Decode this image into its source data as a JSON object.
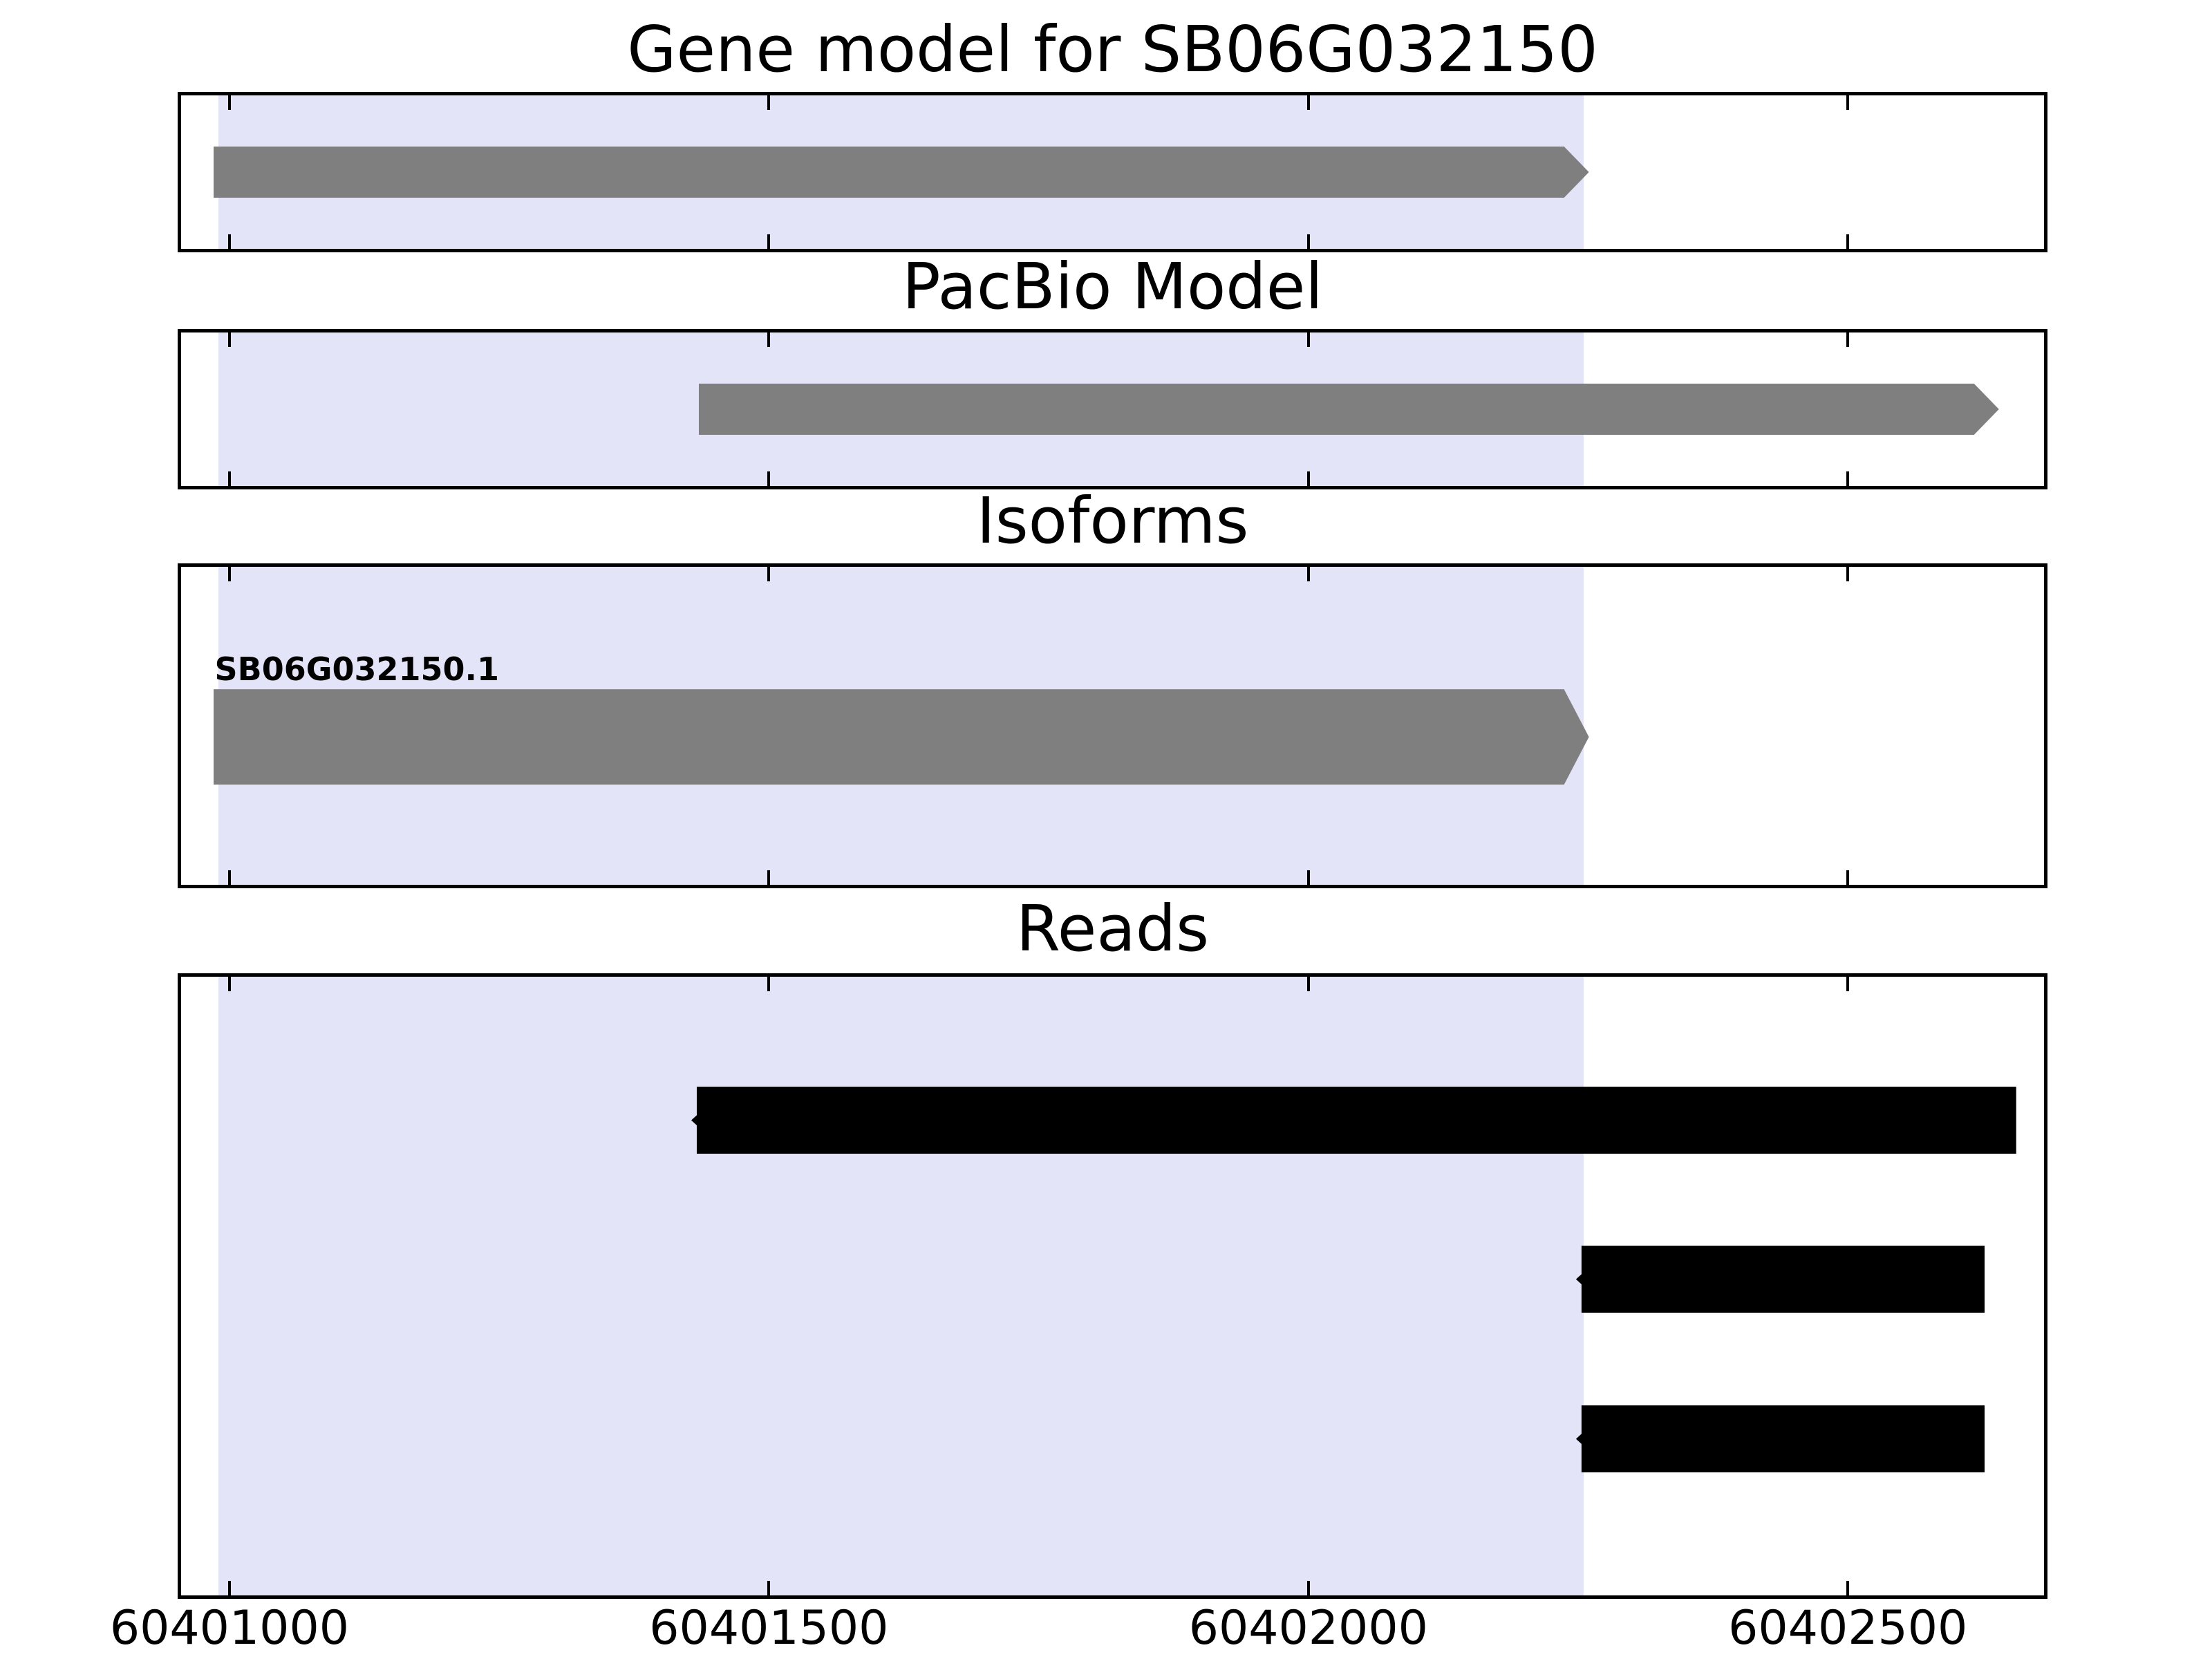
{
  "chart_data": {
    "type": "bar",
    "description": "Genome browser style figure with four horizontal tracks sharing one genomic x-axis",
    "x_axis": {
      "range": [
        60400952,
        60402685
      ],
      "tick_values": [
        60401000,
        60401500,
        60402000,
        60402500
      ],
      "tick_labels": [
        "60401000",
        "60401500",
        "60402000",
        "60402500"
      ],
      "grid": false
    },
    "highlight_region": {
      "start": 60400990,
      "end": 60402255,
      "color": "#e4e4f8"
    },
    "tracks": [
      {
        "id": "gene-model",
        "title": "Gene model for SB06G032150",
        "features": [
          {
            "name": "SB06G032150",
            "start": 60400985,
            "end": 60402260,
            "strand": "+",
            "color": "#7f7f7f"
          }
        ]
      },
      {
        "id": "pacbio-model",
        "title": "PacBio Model",
        "features": [
          {
            "start": 60401435,
            "end": 60402640,
            "strand": "+",
            "color": "#7f7f7f"
          }
        ]
      },
      {
        "id": "isoforms",
        "title": "Isoforms",
        "features": [
          {
            "label": "SB06G032150.1",
            "start": 60400985,
            "end": 60402260,
            "strand": "+",
            "color": "#7f7f7f"
          }
        ]
      },
      {
        "id": "reads",
        "title": "Reads",
        "features": [
          {
            "start": 60401428,
            "end": 60402656,
            "strand": "-",
            "color": "#000000"
          },
          {
            "start": 60402248,
            "end": 60402627,
            "strand": "-",
            "color": "#000000"
          },
          {
            "start": 60402248,
            "end": 60402627,
            "strand": "-",
            "color": "#000000"
          }
        ]
      }
    ],
    "colors": {
      "feature_gray": "#7f7f7f",
      "read_black": "#000000",
      "highlight": "#e4e4f8",
      "border": "#000000",
      "background": "#ffffff"
    },
    "legend": null
  }
}
